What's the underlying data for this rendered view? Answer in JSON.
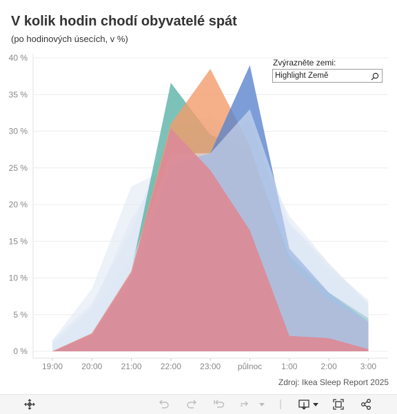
{
  "title": "V kolik hodin chodí obyvatelé spát",
  "subtitle": "(po hodinových úsecích, v %)",
  "highlight": {
    "label": "Zvýrazněte zemi:",
    "placeholder": "Highlight Země"
  },
  "source": "Zdroj: Ikea Sleep Report 2025",
  "colors": {
    "pink": "#dc8a96",
    "teal": "#5bb3a7",
    "orange": "#f29c6b",
    "blue": "#5b84cd",
    "pale": "#dfe7f4",
    "grid": "#ececec",
    "axis_text": "#888888"
  },
  "toolbar": {
    "icons": [
      "move-icon",
      "undo-icon",
      "redo-icon",
      "revert-icon",
      "refresh-icon",
      "download-icon",
      "fullscreen-icon",
      "share-icon"
    ]
  },
  "chart_data": {
    "type": "area",
    "x": [
      "19:00",
      "20:00",
      "21:00",
      "22:00",
      "23:00",
      "půlnoc",
      "1:00",
      "2:00",
      "3:00"
    ],
    "y_ticks": [
      "0 %",
      "5 %",
      "10 %",
      "15 %",
      "20 %",
      "25 %",
      "30 %",
      "35 %",
      "40 %"
    ],
    "ylim": [
      0,
      40
    ],
    "grid": true,
    "series": [
      {
        "color_key": "pale",
        "opacity": 0.55,
        "values": [
          1.5,
          8.5,
          22.5,
          25.0,
          30.5,
          25.0,
          17.5,
          11.5,
          7.0
        ]
      },
      {
        "color_key": "pale",
        "opacity": 0.55,
        "values": [
          1.5,
          6.5,
          16.5,
          30.5,
          32.0,
          29.0,
          18.5,
          12.0,
          6.5
        ]
      },
      {
        "color_key": "pale",
        "opacity": 0.55,
        "values": [
          0.8,
          5.0,
          13.0,
          29.0,
          27.5,
          31.5,
          15.5,
          10.0,
          6.0
        ]
      },
      {
        "color_key": "pale",
        "opacity": 0.55,
        "values": [
          1.0,
          6.0,
          18.0,
          26.5,
          30.0,
          26.0,
          17.0,
          11.0,
          6.5
        ]
      },
      {
        "color_key": "teal",
        "opacity": 0.8,
        "values": [
          0.0,
          2.5,
          11.0,
          36.6,
          29.5,
          27.5,
          13.0,
          8.0,
          4.5
        ]
      },
      {
        "color_key": "orange",
        "opacity": 0.8,
        "values": [
          0.0,
          2.5,
          11.0,
          31.0,
          38.5,
          28.0,
          12.0,
          7.0,
          4.0
        ]
      },
      {
        "color_key": "blue",
        "opacity": 0.8,
        "values": [
          0.0,
          2.0,
          9.5,
          25.5,
          27.0,
          39.0,
          14.0,
          8.0,
          4.0
        ]
      },
      {
        "color_key": "pale",
        "opacity": 0.55,
        "values": [
          1.0,
          5.5,
          12.0,
          27.0,
          27.0,
          33.0,
          17.5,
          12.0,
          6.5
        ]
      },
      {
        "color_key": "pink",
        "opacity": 0.92,
        "values": [
          0.0,
          2.4,
          10.8,
          30.4,
          24.7,
          16.5,
          2.1,
          1.8,
          0.3
        ]
      }
    ]
  }
}
